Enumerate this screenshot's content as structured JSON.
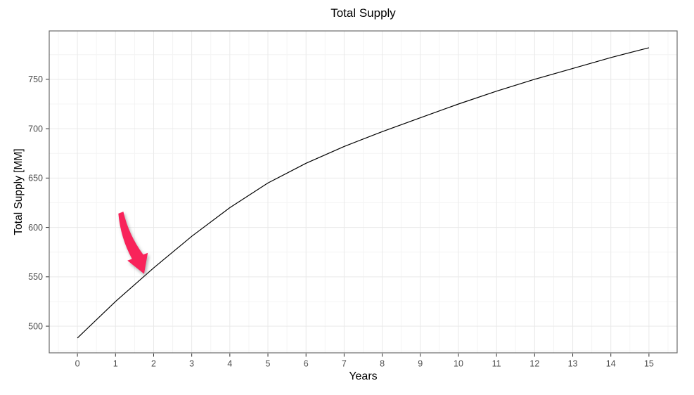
{
  "chart_data": {
    "type": "line",
    "title": "Total Supply",
    "xlabel": "Years",
    "ylabel": "Total Supply [MM]",
    "x": [
      0,
      1,
      2,
      3,
      4,
      5,
      6,
      7,
      8,
      9,
      10,
      11,
      12,
      13,
      14,
      15
    ],
    "series": [
      {
        "name": "Total Supply",
        "color": "#000000",
        "values": [
          488,
          525,
          559,
          591,
          620,
          645,
          665,
          682,
          697,
          711,
          725,
          738,
          750,
          761,
          772,
          782
        ]
      }
    ],
    "x_ticks": [
      0,
      1,
      2,
      3,
      4,
      5,
      6,
      7,
      8,
      9,
      10,
      11,
      12,
      13,
      14,
      15
    ],
    "y_ticks": [
      500,
      550,
      600,
      650,
      700,
      750
    ],
    "x_domain": [
      -0.74,
      15.74
    ],
    "y_domain": [
      473,
      799
    ],
    "x_minor_step": 0.5,
    "y_minor_step": 25,
    "grid": "major and minor, light gray, white panel with gray border",
    "legend": "none",
    "annotation": {
      "type": "arrow",
      "color": "#F8235A",
      "from": [
        1.14,
        615
      ],
      "to": [
        1.75,
        553
      ],
      "points_at": "curve near year 1.75, ~553 MM"
    }
  }
}
